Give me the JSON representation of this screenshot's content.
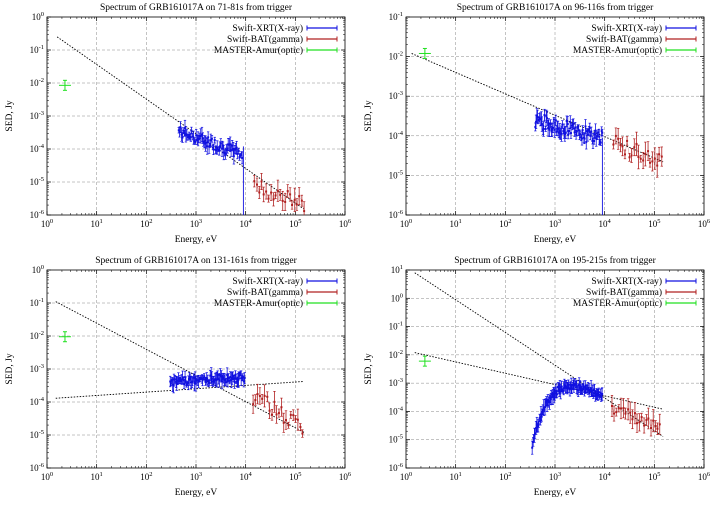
{
  "colors": {
    "xrt": "#1010e0",
    "bat": "#b02020",
    "optic": "#20e020",
    "model": "#000000",
    "grid": "#888888"
  },
  "legend_labels": {
    "xrt": "Swift-XRT(X-ray)",
    "bat": "Swift-BAT(gamma)",
    "optic": "MASTER-Amur(optic)"
  },
  "chart_data": [
    {
      "type": "scatter",
      "title": "Spectrum of GRB161017A on 71-81s from trigger",
      "xlabel": "Energy, eV",
      "ylabel": "SED, Jy",
      "xlim": [
        1,
        1000000
      ],
      "ylim": [
        1e-06,
        1
      ],
      "xticks": [
        "10^0",
        "10^1",
        "10^2",
        "10^3",
        "10^4",
        "10^5",
        "10^6"
      ],
      "yticks": [
        "10^-6",
        "10^-5",
        "10^-4",
        "10^-3",
        "10^-2",
        "10^-1",
        "10^0"
      ],
      "legend_position": "top-right",
      "grid": true,
      "series": [
        {
          "name": "Swift-XRT(X-ray)",
          "x_range": [
            450,
            8500
          ],
          "y_range": [
            6e-05,
            0.00035
          ],
          "slope": -0.55,
          "points": 70,
          "scatter": 0.18
        },
        {
          "name": "Swift-BAT(gamma)",
          "x_range": [
            15000,
            150000
          ],
          "y_range": [
            1.2e-06,
            8e-06
          ],
          "slope": -0.6,
          "points": 22,
          "scatter": 0.25
        },
        {
          "name": "MASTER-Amur(optic)",
          "x": [
            2.3
          ],
          "y": [
            0.0085
          ]
        }
      ],
      "models": [
        {
          "from": [
            1.6,
            0.25
          ],
          "to": [
            150000,
            1.5e-06
          ]
        }
      ]
    },
    {
      "type": "scatter",
      "title": "Spectrum of GRB161017A on 96-116s from trigger",
      "xlabel": "Energy, eV",
      "ylabel": "SED, Jy",
      "xlim": [
        1,
        1000000
      ],
      "ylim": [
        1e-06,
        0.1
      ],
      "xticks": [
        "10^0",
        "10^1",
        "10^2",
        "10^3",
        "10^4",
        "10^5",
        "10^6"
      ],
      "yticks": [
        "10^-6",
        "10^-5",
        "10^-4",
        "10^-3",
        "10^-2",
        "10^-1"
      ],
      "legend_position": "top-right",
      "grid": true,
      "series": [
        {
          "name": "Swift-XRT(X-ray)",
          "x_range": [
            400,
            9000
          ],
          "y_range": [
            5e-05,
            0.00025
          ],
          "slope": -0.35,
          "points": 80,
          "scatter": 0.2
        },
        {
          "name": "Swift-BAT(gamma)",
          "x_range": [
            15000,
            140000
          ],
          "y_range": [
            1e-05,
            7e-05
          ],
          "slope": -0.5,
          "points": 22,
          "scatter": 0.25
        },
        {
          "name": "MASTER-Amur(optic)",
          "x": [
            2.4
          ],
          "y": [
            0.012
          ]
        }
      ],
      "models": [
        {
          "from": [
            1.3,
            0.012
          ],
          "to": [
            150000,
            2.2e-05
          ]
        }
      ]
    },
    {
      "type": "scatter",
      "title": "Spectrum of GRB161017A on 131-161s from trigger",
      "xlabel": "Energy, eV",
      "ylabel": "SED, Jy",
      "xlim": [
        1,
        1000000
      ],
      "ylim": [
        1e-06,
        1
      ],
      "xticks": [
        "10^0",
        "10^1",
        "10^2",
        "10^3",
        "10^4",
        "10^5",
        "10^6"
      ],
      "yticks": [
        "10^-6",
        "10^-5",
        "10^-4",
        "10^-3",
        "10^-2",
        "10^-1",
        "10^0"
      ],
      "legend_position": "top-right",
      "grid": true,
      "series": [
        {
          "name": "Swift-XRT(X-ray)",
          "x_range": [
            300,
            9500
          ],
          "y_range": [
            0.00018,
            0.0004
          ],
          "slope": 0.1,
          "points": 90,
          "scatter": 0.13
        },
        {
          "name": "Swift-BAT(gamma)",
          "x_range": [
            14000,
            140000
          ],
          "y_range": [
            3e-06,
            0.00015
          ],
          "slope": -0.9,
          "points": 22,
          "scatter": 0.25
        },
        {
          "name": "MASTER-Amur(optic)",
          "x": [
            2.3
          ],
          "y": [
            0.0095
          ]
        }
      ],
      "models": [
        {
          "from": [
            1.5,
            0.11
          ],
          "to": [
            150000,
            1.2e-05
          ]
        },
        {
          "from": [
            1.5,
            0.00013
          ],
          "to": [
            150000,
            0.00042
          ]
        }
      ]
    },
    {
      "type": "scatter",
      "title": "Spectrum of GRB161017A on 195-215s from trigger",
      "xlabel": "Energy, eV",
      "ylabel": "SED, Jy",
      "xlim": [
        1,
        1000000
      ],
      "ylim": [
        1e-06,
        10
      ],
      "xticks": [
        "10^0",
        "10^1",
        "10^2",
        "10^3",
        "10^4",
        "10^5",
        "10^6"
      ],
      "yticks": [
        "10^-6",
        "10^-5",
        "10^-4",
        "10^-3",
        "10^-2",
        "10^-1",
        "10^0",
        "10^1"
      ],
      "legend_position": "top-right",
      "grid": true,
      "series": [
        {
          "name": "Swift-XRT(X-ray)",
          "x_range": [
            350,
            9000
          ],
          "y_range": [
            7e-06,
            0.0008
          ],
          "curve": "peaked",
          "peak_x": 2500,
          "peak_y": 0.00075,
          "points": 100,
          "scatter": 0.12
        },
        {
          "name": "Swift-BAT(gamma)",
          "x_range": [
            14000,
            130000
          ],
          "y_range": [
            3e-05,
            0.00013
          ],
          "slope": -0.7,
          "points": 22,
          "scatter": 0.2
        },
        {
          "name": "MASTER-Amur(optic)",
          "x": [
            2.4
          ],
          "y": [
            0.006
          ]
        }
      ],
      "models": [
        {
          "from": [
            1.5,
            8.0
          ],
          "to": [
            150000,
            1.3e-05
          ]
        },
        {
          "from": [
            1.5,
            0.012
          ],
          "to": [
            150000,
            0.00012
          ]
        }
      ]
    }
  ]
}
